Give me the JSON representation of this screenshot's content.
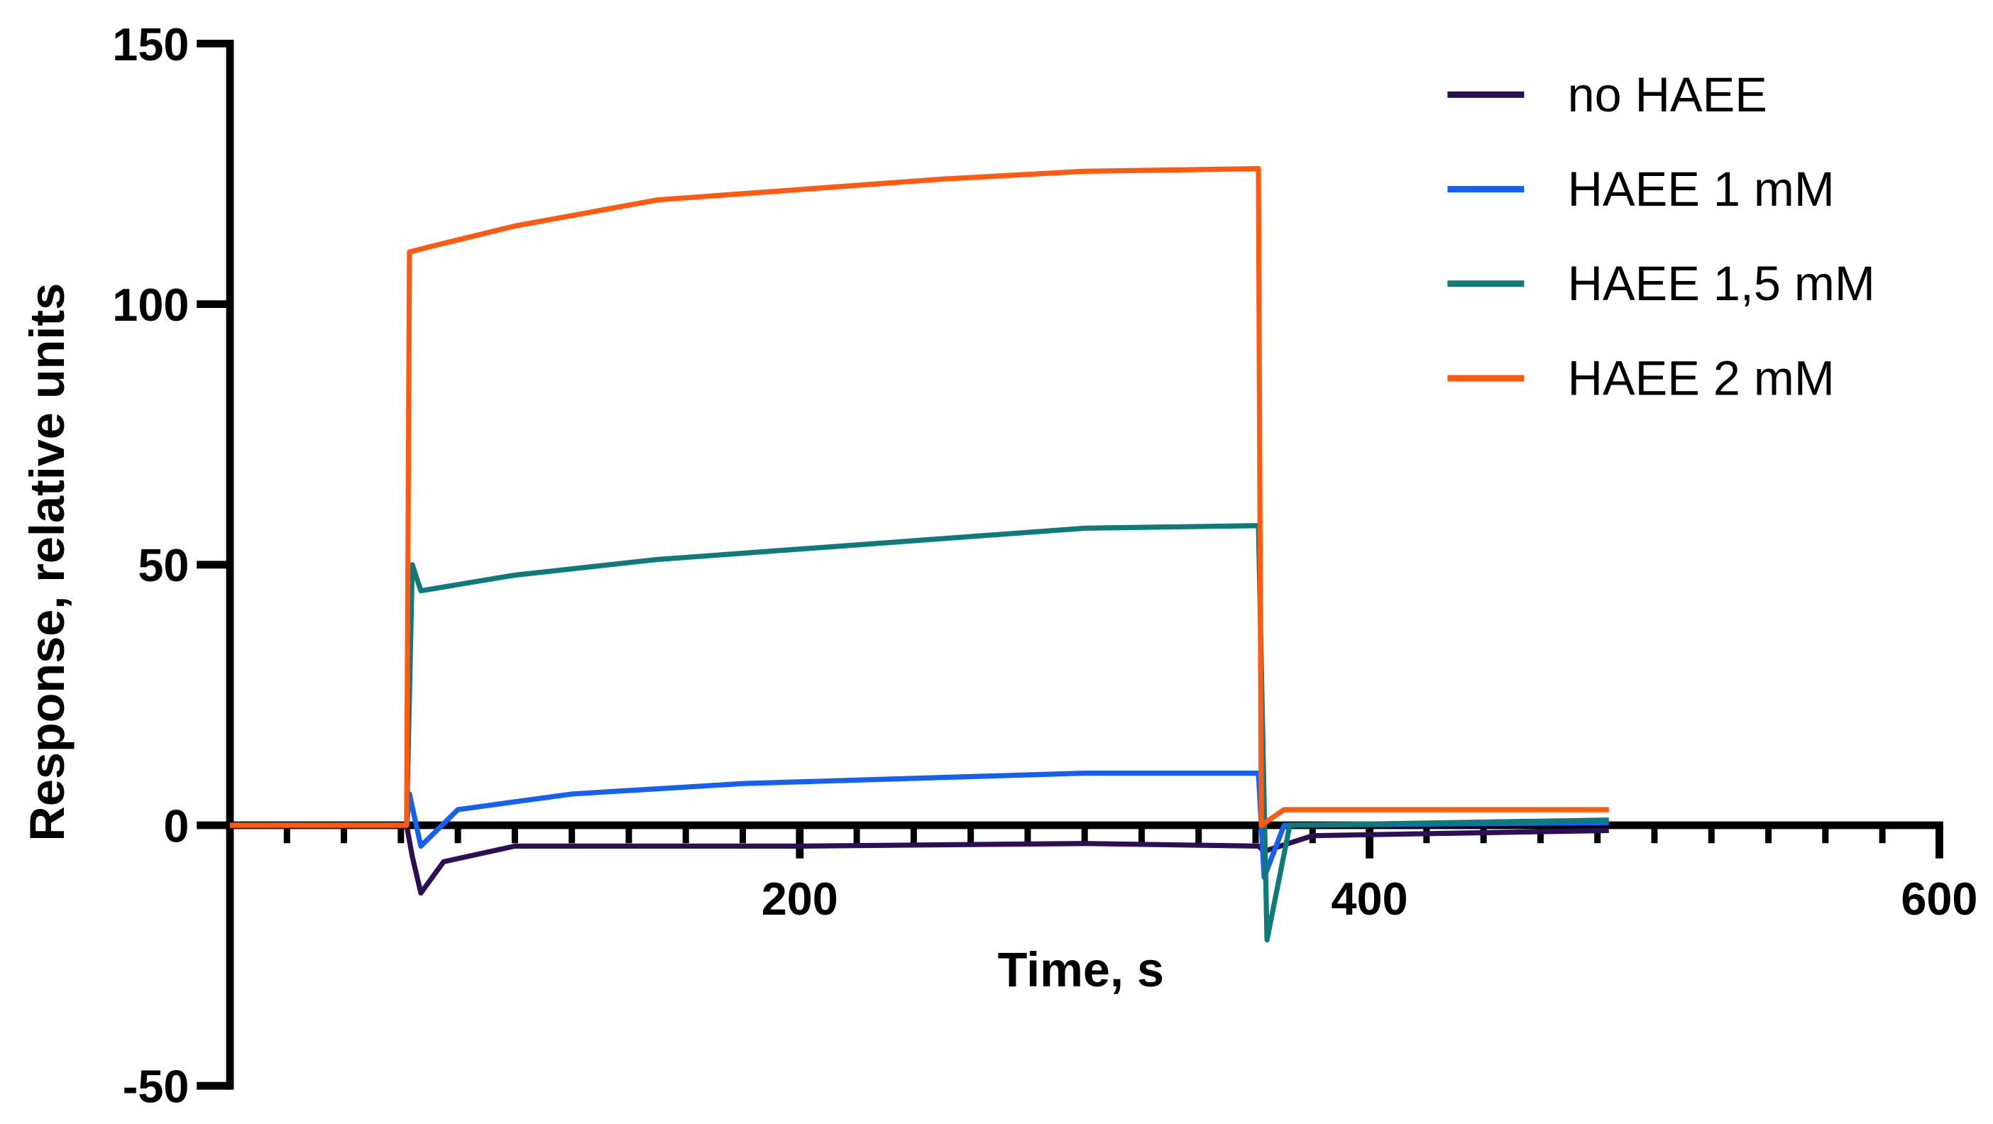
{
  "chart_data": {
    "type": "line",
    "xlabel": "Time, s",
    "ylabel": "Response, relative units",
    "xlim": [
      0,
      600
    ],
    "ylim": [
      -50,
      150
    ],
    "xticks": [
      200,
      400,
      600
    ],
    "x_minor_ticks": [
      20,
      40,
      60,
      80,
      100,
      120,
      140,
      160,
      180,
      220,
      240,
      260,
      280,
      300,
      320,
      340,
      360,
      380,
      420,
      440,
      460,
      480,
      500,
      520,
      540,
      560,
      580
    ],
    "yticks": [
      -50,
      0,
      50,
      100,
      150
    ],
    "legend": "top-right",
    "series": [
      {
        "name": "no HAEE",
        "color": "#2d0f55",
        "x": [
          0,
          62,
          64,
          67,
          75,
          100,
          200,
          300,
          361,
          363,
          380,
          484
        ],
        "values": [
          0,
          0,
          -6,
          -13,
          -7,
          -4,
          -4,
          -3.5,
          -4,
          -5,
          -2,
          -1
        ]
      },
      {
        "name": "HAEE 1 mM",
        "color": "#1560f0",
        "x": [
          0,
          62,
          63,
          67,
          80,
          120,
          180,
          240,
          300,
          361,
          363,
          370,
          484
        ],
        "values": [
          0,
          0,
          6,
          -4,
          3,
          6,
          8,
          9,
          10,
          10,
          -10,
          0,
          0.5
        ]
      },
      {
        "name": "HAEE 1,5 mM",
        "color": "#0f7a7a",
        "x": [
          0,
          62,
          64,
          67,
          100,
          150,
          200,
          250,
          300,
          361,
          364,
          372,
          484
        ],
        "values": [
          0,
          0,
          50,
          45,
          48,
          51,
          53,
          55,
          57,
          57.5,
          -22,
          0,
          1
        ]
      },
      {
        "name": "HAEE 2 mM",
        "color": "#ff5a10",
        "x": [
          0,
          62,
          63,
          70,
          100,
          150,
          200,
          250,
          300,
          361,
          362,
          370,
          484
        ],
        "values": [
          0,
          0,
          110,
          111,
          115,
          120,
          122,
          124,
          125.5,
          126,
          0,
          3,
          3
        ]
      }
    ]
  }
}
